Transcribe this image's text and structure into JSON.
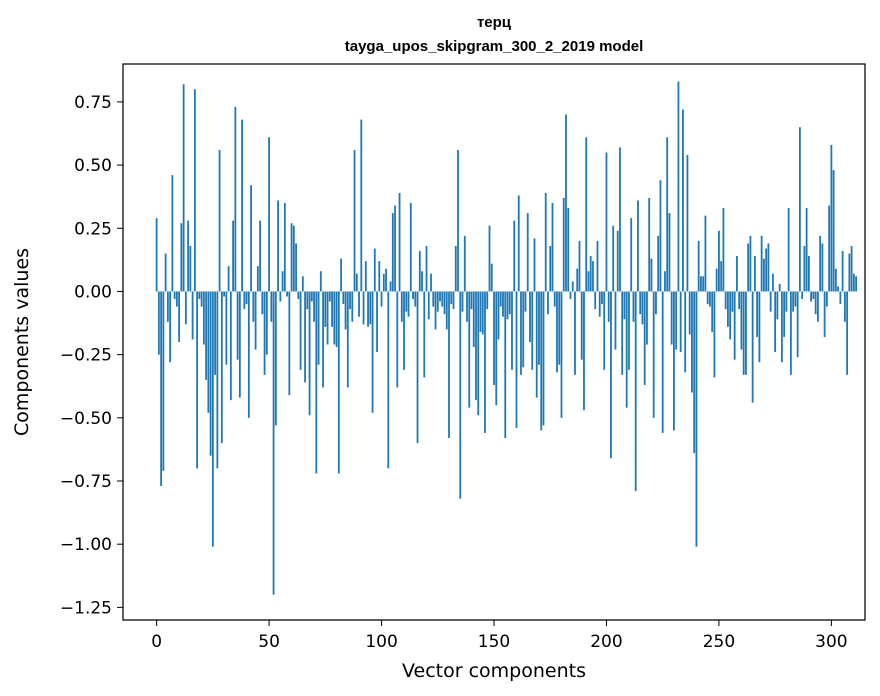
{
  "chart_data": {
    "type": "bar",
    "title": "терц",
    "subtitle": "tayga_upos_skipgram_300_2_2019 model",
    "xlabel": "Vector components",
    "ylabel": "Components values",
    "xlim": [
      -14.95,
      314.95
    ],
    "ylim": [
      -1.3,
      0.9
    ],
    "xticks": [
      0,
      50,
      100,
      150,
      200,
      250,
      300
    ],
    "xtick_labels": [
      "0",
      "50",
      "100",
      "150",
      "200",
      "250",
      "300"
    ],
    "yticks": [
      -1.25,
      -1.0,
      -0.75,
      -0.5,
      -0.25,
      0.0,
      0.25,
      0.5,
      0.75
    ],
    "ytick_labels": [
      "−1.25",
      "−1.00",
      "−0.75",
      "−0.50",
      "−0.25",
      "0.00",
      "0.25",
      "0.50",
      "0.75"
    ],
    "bar_color": "#1f77b4",
    "grid": false,
    "values": [
      0.29,
      -0.25,
      -0.77,
      -0.71,
      0.15,
      -0.12,
      -0.28,
      0.46,
      -0.03,
      -0.06,
      -0.2,
      0.27,
      0.82,
      -0.13,
      0.28,
      0.18,
      -0.19,
      0.8,
      -0.7,
      -0.03,
      -0.06,
      -0.21,
      -0.35,
      -0.48,
      -0.65,
      -1.01,
      -0.33,
      -0.7,
      0.56,
      -0.6,
      -0.02,
      -0.29,
      0.1,
      -0.43,
      0.28,
      0.73,
      -0.27,
      -0.42,
      0.68,
      -0.07,
      -0.05,
      -0.5,
      0.42,
      -0.12,
      -0.23,
      0.1,
      0.28,
      -0.09,
      -0.33,
      -0.25,
      0.61,
      -0.12,
      -1.2,
      -0.53,
      0.36,
      -0.04,
      0.08,
      0.35,
      -0.02,
      -0.41,
      0.27,
      0.26,
      0.19,
      -0.03,
      -0.31,
      0.06,
      -0.36,
      -0.07,
      -0.49,
      -0.04,
      -0.12,
      -0.72,
      -0.29,
      0.08,
      -0.38,
      -0.14,
      -0.21,
      -0.04,
      -0.14,
      -0.21,
      -0.22,
      -0.72,
      0.13,
      -0.05,
      -0.15,
      -0.38,
      -0.07,
      -0.12,
      0.56,
      0.07,
      -0.1,
      0.68,
      -0.13,
      0.12,
      -0.14,
      -0.13,
      -0.48,
      0.17,
      -0.24,
      0.12,
      -0.06,
      0.07,
      0.09,
      -0.7,
      0.04,
      0.31,
      0.34,
      -0.38,
      0.39,
      -0.12,
      -0.31,
      -0.08,
      -0.1,
      0.35,
      -0.03,
      -0.06,
      -0.6,
      0.16,
      0.08,
      -0.34,
      0.18,
      -0.11,
      0.07,
      -0.06,
      -0.15,
      -0.08,
      -0.04,
      -0.06,
      -0.09,
      -0.15,
      -0.58,
      -0.05,
      -0.07,
      0.18,
      0.56,
      -0.82,
      -0.08,
      0.22,
      -0.12,
      -0.46,
      -0.07,
      -0.22,
      -0.43,
      -0.49,
      -0.16,
      -0.17,
      -0.56,
      -0.07,
      0.26,
      0.11,
      -0.37,
      -0.45,
      -0.19,
      -0.06,
      -0.1,
      -0.58,
      -0.11,
      -0.09,
      -0.31,
      0.28,
      -0.54,
      0.38,
      -0.33,
      -0.3,
      -0.08,
      0.31,
      -0.2,
      -0.31,
      0.21,
      -0.42,
      -0.29,
      -0.55,
      -0.53,
      0.39,
      -0.09,
      0.18,
      0.35,
      -0.06,
      -0.32,
      -0.29,
      -0.5,
      0.37,
      0.7,
      0.33,
      -0.03,
      0.04,
      -0.33,
      0.09,
      0.2,
      -0.27,
      -0.47,
      0.61,
      0.08,
      0.14,
      0.12,
      -0.07,
      0.2,
      -0.1,
      -0.05,
      -0.31,
      0.55,
      -0.12,
      -0.66,
      0.26,
      -0.23,
      0.24,
      0.57,
      -0.33,
      -0.11,
      -0.46,
      -0.31,
      0.29,
      -0.12,
      -0.79,
      0.36,
      -0.09,
      -0.13,
      -0.37,
      -0.21,
      0.37,
      0.13,
      -0.5,
      -0.09,
      0.22,
      0.44,
      -0.56,
      0.08,
      0.61,
      0.31,
      -0.21,
      -0.55,
      -0.23,
      0.83,
      -0.24,
      0.72,
      -0.32,
      0.54,
      -0.17,
      -0.4,
      -0.64,
      -1.01,
      0.2,
      0.06,
      0.06,
      0.3,
      -0.05,
      -0.06,
      -0.16,
      -0.34,
      0.09,
      0.24,
      0.12,
      0.33,
      -0.07,
      -0.14,
      -0.19,
      -0.08,
      -0.27,
      0.14,
      -0.07,
      -0.23,
      -0.33,
      -0.33,
      0.19,
      0.22,
      -0.44,
      0.14,
      -0.18,
      -0.28,
      0.22,
      0.13,
      0.17,
      0.19,
      -0.08,
      0.07,
      -0.24,
      -0.11,
      0.03,
      -0.28,
      -0.18,
      -0.08,
      0.33,
      -0.33,
      -0.08,
      -0.06,
      -0.26,
      0.65,
      -0.03,
      0.18,
      0.33,
      0.14,
      -0.04,
      -0.03,
      -0.09,
      -0.12,
      0.22,
      0.19,
      -0.18,
      -0.06,
      0.34,
      0.58,
      0.48,
      0.09,
      0.02,
      -0.05,
      0.16,
      -0.12,
      -0.33,
      0.15,
      0.18,
      0.07,
      0.06
    ]
  }
}
